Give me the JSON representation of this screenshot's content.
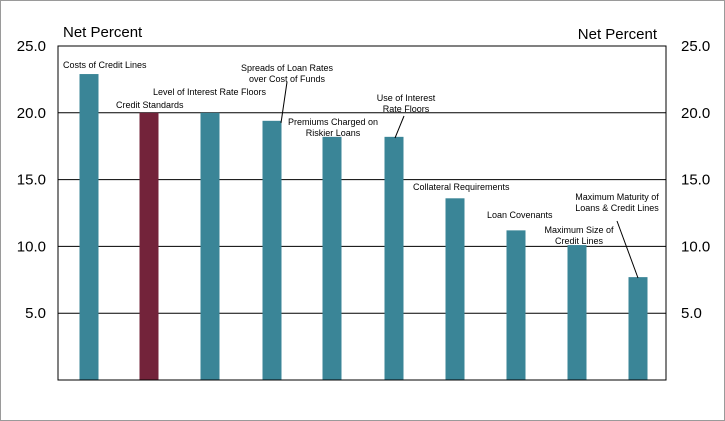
{
  "chart_data": {
    "type": "bar",
    "ylabel_left": "Net Percent",
    "ylabel_right": "Net Percent",
    "ylim": [
      0,
      25
    ],
    "yticks": [
      "25.0",
      "20.0",
      "15.0",
      "10.0",
      "5.0"
    ],
    "grid": true,
    "categories": [
      "Costs of Credit Lines",
      "Credit Standards",
      "Level of Interest Rate Floors",
      "Spreads of Loan Rates over Cost of Funds",
      "Premiums Charged on Riskier Loans",
      "Use of Interest Rate Floors",
      "Collateral Requirements",
      "Loan Covenants",
      "Maximum Size of Credit Lines",
      "Maximum Maturity of Loans & Credit Lines"
    ],
    "values": [
      22.9,
      20.0,
      20.0,
      19.4,
      18.2,
      18.2,
      13.6,
      11.2,
      10.1,
      7.7
    ],
    "bar_colors": [
      "#3a8597",
      "#73233a",
      "#3a8597",
      "#3a8597",
      "#3a8597",
      "#3a8597",
      "#3a8597",
      "#3a8597",
      "#3a8597",
      "#3a8597"
    ],
    "labels": [
      [
        "Costs of Credit Lines"
      ],
      [
        "Credit Standards"
      ],
      [
        "Level of Interest Rate Floors"
      ],
      [
        "Spreads of Loan Rates",
        "over Cost of Funds"
      ],
      [
        "Premiums Charged on",
        "Riskier Loans"
      ],
      [
        "Use of Interest",
        "Rate Floors"
      ],
      [
        "Collateral Requirements"
      ],
      [
        "Loan Covenants"
      ],
      [
        "Maximum Size of",
        "Credit Lines"
      ],
      [
        "Maximum Maturity of",
        "Loans & Credit Lines"
      ]
    ]
  }
}
